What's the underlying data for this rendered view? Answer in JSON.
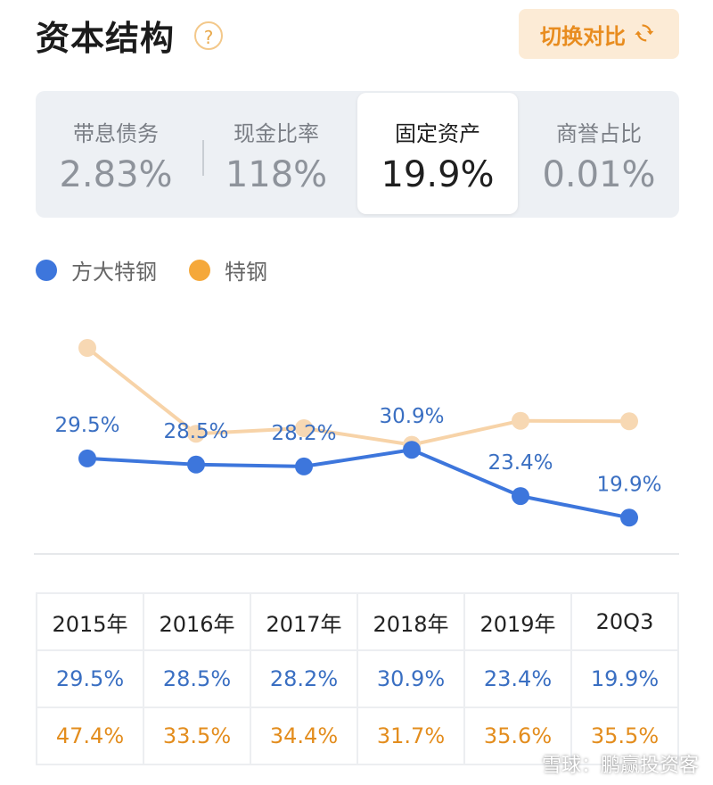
{
  "header": {
    "title": "资本结构",
    "help_icon": "?",
    "switch_label": "切换对比",
    "switch_icon": "refresh-icon"
  },
  "metrics": [
    {
      "label": "带息债务",
      "value": "2.83%",
      "active": false
    },
    {
      "label": "现金比率",
      "value": "118%",
      "active": false
    },
    {
      "label": "固定资产",
      "value": "19.9%",
      "active": true
    },
    {
      "label": "商誉占比",
      "value": "0.01%",
      "active": false
    }
  ],
  "colors": {
    "series1": "#3d76dc",
    "series2": "#f5a83a",
    "series2_line": "#f7d3a8",
    "series2_marker": "#f7d8b3",
    "label1": "#3a6fc2"
  },
  "chart_data": {
    "type": "line",
    "categories": [
      "2015年",
      "2016年",
      "2017年",
      "2018年",
      "2019年",
      "20Q3"
    ],
    "series": [
      {
        "name": "方大特钢",
        "values": [
          29.5,
          28.5,
          28.2,
          30.9,
          23.4,
          19.9
        ],
        "labels": [
          "29.5%",
          "28.5%",
          "28.2%",
          "30.9%",
          "23.4%",
          "19.9%"
        ]
      },
      {
        "name": "特钢",
        "values": [
          47.4,
          33.5,
          34.4,
          31.7,
          35.6,
          35.5
        ],
        "labels": [
          "47.4%",
          "33.5%",
          "34.4%",
          "31.7%",
          "35.6%",
          "35.5%"
        ]
      }
    ],
    "ylim": [
      15,
      50
    ],
    "title": "",
    "xlabel": "",
    "ylabel": ""
  },
  "table": {
    "headers": [
      "2015年",
      "2016年",
      "2017年",
      "2018年",
      "2019年",
      "20Q3"
    ],
    "rows": [
      [
        "29.5%",
        "28.5%",
        "28.2%",
        "30.9%",
        "23.4%",
        "19.9%"
      ],
      [
        "47.4%",
        "33.5%",
        "34.4%",
        "31.7%",
        "35.6%",
        "35.5%"
      ]
    ]
  },
  "watermark": "雪球：鹏赢投资客"
}
